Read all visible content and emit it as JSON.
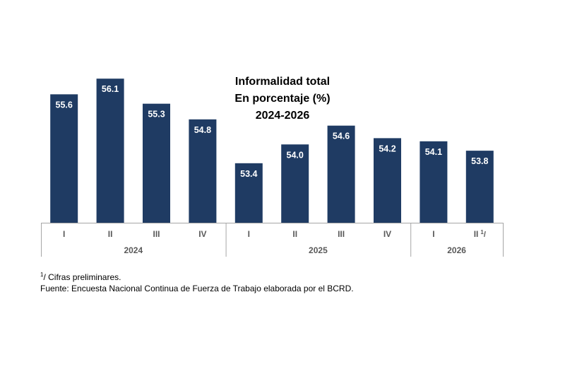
{
  "chart_data": {
    "type": "bar",
    "title": "Informalidad total",
    "subtitle": "En porcentaje (%)",
    "period": "2024-2026",
    "xlabel": "",
    "ylabel": "",
    "ylim": [
      51.5,
      57
    ],
    "grid": false,
    "legend": "none",
    "bar_color": "#1f3b63",
    "categories": [
      "I",
      "II",
      "III",
      "IV",
      "I",
      "II",
      "III",
      "IV",
      "I",
      "II"
    ],
    "category_marks": [
      "",
      "",
      "",
      "",
      "",
      "",
      "",
      "",
      "",
      "1/"
    ],
    "values": [
      55.6,
      56.1,
      55.3,
      54.8,
      53.4,
      54.0,
      54.6,
      54.2,
      54.1,
      53.8
    ],
    "value_labels": [
      "55.6",
      "56.1",
      "55.3",
      "54.8",
      "53.4",
      "54.0",
      "54.6",
      "54.2",
      "54.1",
      "53.8"
    ],
    "groups": [
      {
        "label": "2024",
        "count": 4
      },
      {
        "label": "2025",
        "count": 4
      },
      {
        "label": "2026",
        "count": 2
      }
    ]
  },
  "notes": {
    "footnote_mark": "1",
    "footnote_text": "/ Cifras preliminares.",
    "source": "Fuente: Encuesta Nacional Continua de Fuerza de Trabajo elaborada por el BCRD."
  }
}
